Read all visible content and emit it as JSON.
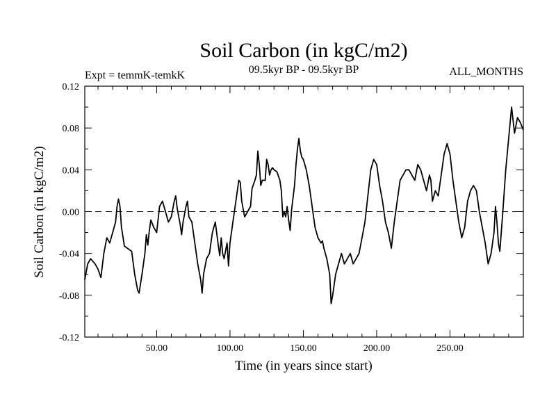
{
  "chart_data": {
    "type": "line",
    "title": "Soil Carbon (in kgC/m2)",
    "subtitle_left": "Expt = temmK-temkK",
    "subtitle_center": "09.5kyr BP - 09.5kyr BP",
    "subtitle_right": "ALL_MONTHS",
    "xlabel": "Time (in years since start)",
    "ylabel": "Soil Carbon (in kgC/m2)",
    "xlim": [
      1,
      300
    ],
    "ylim": [
      -0.12,
      0.12
    ],
    "x_ticks": [
      50,
      100,
      150,
      200,
      250
    ],
    "x_tick_labels": [
      "50.00",
      "100.00",
      "150.00",
      "200.00",
      "250.00"
    ],
    "y_ticks": [
      -0.12,
      -0.08,
      -0.04,
      0.0,
      0.04,
      0.08,
      0.12
    ],
    "y_tick_labels": [
      "-0.12",
      "-0.08",
      "-0.04",
      "0.00",
      "0.04",
      "0.08",
      "0.12"
    ],
    "reference_line": 0.0,
    "series": [
      {
        "name": "Soil Carbon",
        "points": [
          [
            1,
            -0.065
          ],
          [
            3,
            -0.05
          ],
          [
            5,
            -0.045
          ],
          [
            8,
            -0.05
          ],
          [
            10,
            -0.055
          ],
          [
            12,
            -0.063
          ],
          [
            14,
            -0.04
          ],
          [
            16,
            -0.025
          ],
          [
            18,
            -0.03
          ],
          [
            20,
            -0.02
          ],
          [
            22,
            -0.01
          ],
          [
            23,
            0.005
          ],
          [
            24,
            0.012
          ],
          [
            25,
            0.005
          ],
          [
            26,
            -0.015
          ],
          [
            28,
            -0.033
          ],
          [
            30,
            -0.035
          ],
          [
            33,
            -0.038
          ],
          [
            35,
            -0.06
          ],
          [
            37,
            -0.075
          ],
          [
            38,
            -0.078
          ],
          [
            40,
            -0.06
          ],
          [
            42,
            -0.04
          ],
          [
            43,
            -0.022
          ],
          [
            44,
            -0.032
          ],
          [
            45,
            -0.018
          ],
          [
            46,
            -0.008
          ],
          [
            48,
            -0.015
          ],
          [
            50,
            -0.02
          ],
          [
            52,
            0.005
          ],
          [
            54,
            0.01
          ],
          [
            56,
            0.0
          ],
          [
            58,
            -0.01
          ],
          [
            60,
            -0.005
          ],
          [
            62,
            0.01
          ],
          [
            63,
            0.015
          ],
          [
            64,
            0.003
          ],
          [
            66,
            -0.012
          ],
          [
            67,
            -0.022
          ],
          [
            68,
            -0.01
          ],
          [
            70,
            0.005
          ],
          [
            71,
            0.01
          ],
          [
            72,
            -0.005
          ],
          [
            74,
            -0.01
          ],
          [
            76,
            -0.03
          ],
          [
            78,
            -0.05
          ],
          [
            80,
            -0.065
          ],
          [
            81,
            -0.078
          ],
          [
            82,
            -0.06
          ],
          [
            84,
            -0.045
          ],
          [
            86,
            -0.04
          ],
          [
            88,
            -0.02
          ],
          [
            90,
            -0.01
          ],
          [
            92,
            -0.032
          ],
          [
            93,
            -0.042
          ],
          [
            94,
            -0.025
          ],
          [
            95,
            -0.04
          ],
          [
            96,
            -0.045
          ],
          [
            98,
            -0.03
          ],
          [
            99,
            -0.052
          ],
          [
            100,
            -0.03
          ],
          [
            102,
            -0.01
          ],
          [
            104,
            0.01
          ],
          [
            106,
            0.03
          ],
          [
            107,
            0.028
          ],
          [
            108,
            0.01
          ],
          [
            110,
            -0.005
          ],
          [
            112,
            0.0
          ],
          [
            114,
            0.005
          ],
          [
            115,
            0.022
          ],
          [
            117,
            0.03
          ],
          [
            118,
            0.035
          ],
          [
            119,
            0.058
          ],
          [
            120,
            0.045
          ],
          [
            121,
            0.025
          ],
          [
            122,
            0.03
          ],
          [
            124,
            0.03
          ],
          [
            125,
            0.05
          ],
          [
            126,
            0.045
          ],
          [
            127,
            0.035
          ],
          [
            128,
            0.04
          ],
          [
            129,
            0.042
          ],
          [
            130,
            0.04
          ],
          [
            132,
            0.038
          ],
          [
            134,
            0.03
          ],
          [
            135,
            0.02
          ],
          [
            136,
            -0.005
          ],
          [
            137,
            0.0
          ],
          [
            138,
            -0.005
          ],
          [
            139,
            0.005
          ],
          [
            140,
            -0.008
          ],
          [
            141,
            -0.018
          ],
          [
            142,
            0.002
          ],
          [
            144,
            0.025
          ],
          [
            145,
            0.045
          ],
          [
            146,
            0.06
          ],
          [
            147,
            0.07
          ],
          [
            148,
            0.058
          ],
          [
            149,
            0.052
          ],
          [
            150,
            0.05
          ],
          [
            152,
            0.04
          ],
          [
            154,
            0.025
          ],
          [
            156,
            0.005
          ],
          [
            158,
            -0.015
          ],
          [
            160,
            -0.025
          ],
          [
            162,
            -0.03
          ],
          [
            163,
            -0.028
          ],
          [
            164,
            -0.035
          ],
          [
            166,
            -0.045
          ],
          [
            168,
            -0.06
          ],
          [
            169,
            -0.088
          ],
          [
            170,
            -0.08
          ],
          [
            172,
            -0.06
          ],
          [
            174,
            -0.05
          ],
          [
            176,
            -0.04
          ],
          [
            178,
            -0.05
          ],
          [
            180,
            -0.045
          ],
          [
            182,
            -0.04
          ],
          [
            184,
            -0.05
          ],
          [
            186,
            -0.045
          ],
          [
            188,
            -0.04
          ],
          [
            190,
            -0.025
          ],
          [
            192,
            -0.01
          ],
          [
            194,
            0.015
          ],
          [
            196,
            0.04
          ],
          [
            198,
            0.05
          ],
          [
            200,
            0.045
          ],
          [
            202,
            0.025
          ],
          [
            204,
            0.01
          ],
          [
            206,
            -0.01
          ],
          [
            208,
            -0.02
          ],
          [
            210,
            -0.035
          ],
          [
            212,
            -0.01
          ],
          [
            214,
            0.01
          ],
          [
            216,
            0.03
          ],
          [
            218,
            0.035
          ],
          [
            220,
            0.04
          ],
          [
            222,
            0.04
          ],
          [
            224,
            0.035
          ],
          [
            226,
            0.03
          ],
          [
            228,
            0.045
          ],
          [
            230,
            0.04
          ],
          [
            232,
            0.03
          ],
          [
            234,
            0.02
          ],
          [
            236,
            0.035
          ],
          [
            237,
            0.03
          ],
          [
            238,
            0.01
          ],
          [
            240,
            0.02
          ],
          [
            242,
            0.015
          ],
          [
            244,
            0.035
          ],
          [
            246,
            0.055
          ],
          [
            248,
            0.065
          ],
          [
            250,
            0.055
          ],
          [
            252,
            0.03
          ],
          [
            254,
            0.01
          ],
          [
            256,
            -0.01
          ],
          [
            258,
            -0.025
          ],
          [
            260,
            -0.015
          ],
          [
            262,
            0.01
          ],
          [
            264,
            0.02
          ],
          [
            266,
            0.025
          ],
          [
            268,
            0.02
          ],
          [
            270,
            0.0
          ],
          [
            272,
            -0.015
          ],
          [
            274,
            -0.03
          ],
          [
            276,
            -0.05
          ],
          [
            278,
            -0.04
          ],
          [
            280,
            -0.02
          ],
          [
            281,
            0.005
          ],
          [
            282,
            -0.01
          ],
          [
            283,
            -0.03
          ],
          [
            284,
            -0.038
          ],
          [
            286,
            0.0
          ],
          [
            288,
            0.04
          ],
          [
            290,
            0.07
          ],
          [
            292,
            0.1
          ],
          [
            294,
            0.075
          ],
          [
            296,
            0.09
          ],
          [
            298,
            0.085
          ],
          [
            300,
            0.078
          ]
        ]
      }
    ]
  }
}
